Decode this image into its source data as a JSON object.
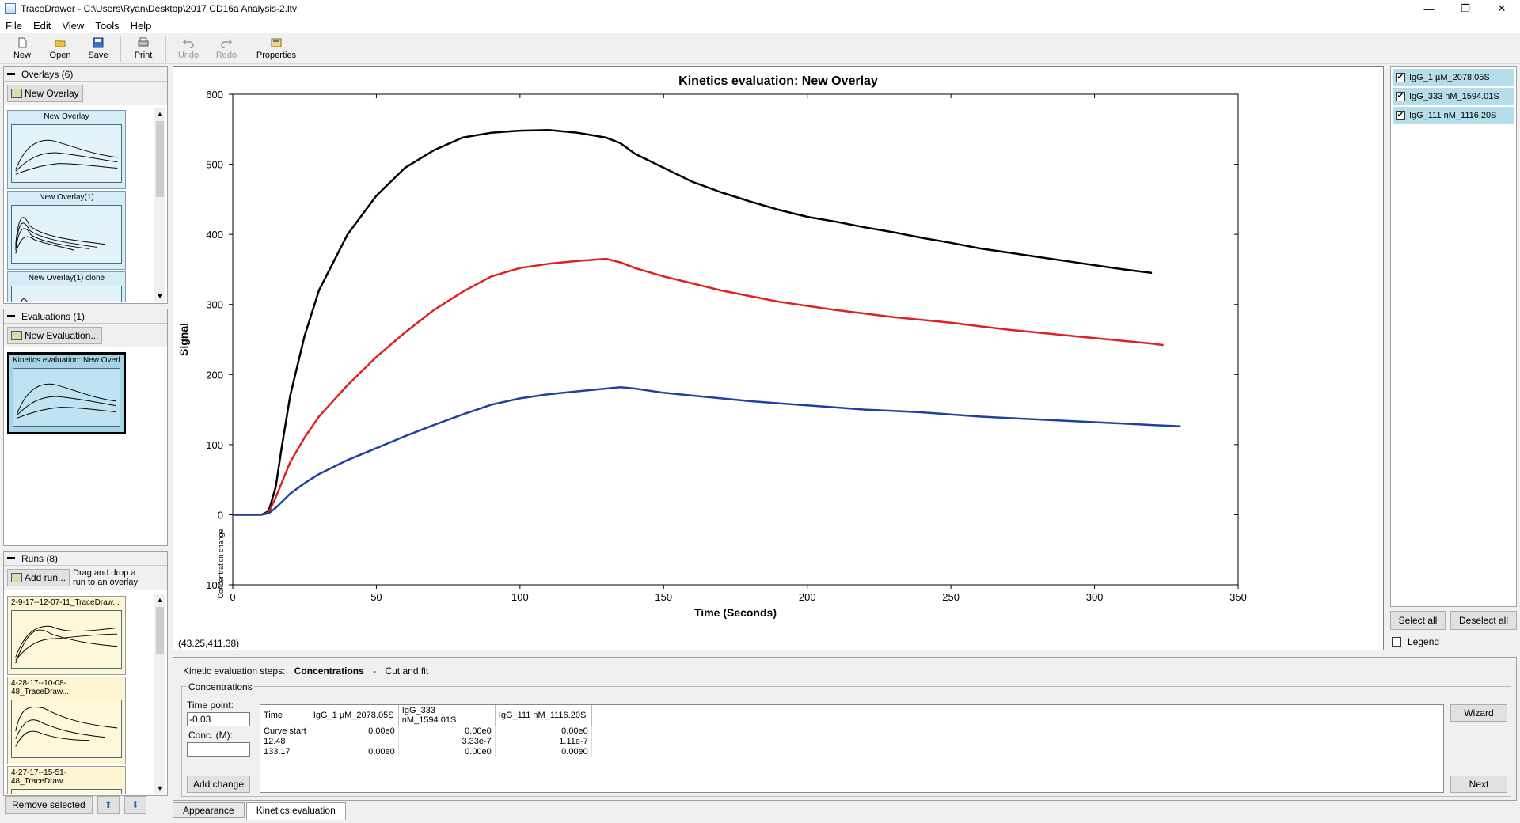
{
  "window": {
    "title": "TraceDrawer - C:\\Users\\Ryan\\Desktop\\2017 CD16a Analysis-2.ltv",
    "controls": [
      "—",
      "❐",
      "✕"
    ]
  },
  "menu": [
    "File",
    "Edit",
    "View",
    "Tools",
    "Help"
  ],
  "toolbar": {
    "new": "New",
    "open": "Open",
    "save": "Save",
    "print": "Print",
    "undo": "Undo",
    "redo": "Redo",
    "properties": "Properties"
  },
  "overlays": {
    "header": "Overlays (6)",
    "button": "New Overlay",
    "items": [
      "New Overlay",
      "New Overlay(1)",
      "New Overlay(1) clone"
    ]
  },
  "evaluations": {
    "header": "Evaluations (1)",
    "button": "New Evaluation...",
    "items": [
      "Kinetics evaluation: New Overl..."
    ]
  },
  "runs": {
    "header": "Runs (8)",
    "button": "Add run...",
    "hint": "Drag and drop a run to an overlay",
    "items": [
      "2-9-17--12-07-11_TraceDraw...",
      "4-28-17--10-08-48_TraceDraw...",
      "4-27-17--15-51-48_TraceDraw..."
    ]
  },
  "bottom_buttons": {
    "remove": "Remove selected"
  },
  "chart_data": {
    "type": "line",
    "title": "Kinetics evaluation: New Overlay",
    "xlabel": "Time (Seconds)",
    "ylabel": "Signal",
    "y2label": "Concentration change",
    "xlim": [
      0,
      350
    ],
    "ylim": [
      -100,
      600
    ],
    "xticks": [
      0,
      50,
      100,
      150,
      200,
      250,
      300,
      350
    ],
    "yticks": [
      -100,
      0,
      100,
      200,
      300,
      400,
      500,
      600
    ],
    "cursor_readout": "(43.25,411.38)",
    "series": [
      {
        "name": "IgG_1 µM_2078.05S",
        "color": "#000000",
        "x": [
          0,
          5,
          10,
          12.5,
          15,
          17,
          20,
          25,
          30,
          40,
          50,
          60,
          70,
          80,
          90,
          100,
          110,
          120,
          130,
          135,
          140,
          150,
          160,
          170,
          180,
          190,
          200,
          210,
          220,
          230,
          240,
          250,
          260,
          270,
          280,
          290,
          300,
          310,
          320
        ],
        "y": [
          0,
          0,
          0,
          5,
          40,
          95,
          170,
          255,
          320,
          400,
          455,
          495,
          520,
          538,
          545,
          548,
          549,
          545,
          538,
          530,
          515,
          495,
          475,
          460,
          447,
          435,
          425,
          418,
          410,
          403,
          395,
          388,
          380,
          374,
          368,
          362,
          356,
          350,
          345
        ]
      },
      {
        "name": "IgG_333 nM_1594.01S",
        "color": "#e02020",
        "x": [
          0,
          5,
          10,
          12.5,
          15,
          20,
          25,
          30,
          40,
          50,
          60,
          70,
          80,
          90,
          100,
          110,
          120,
          130,
          135,
          140,
          150,
          160,
          170,
          180,
          190,
          200,
          210,
          220,
          230,
          240,
          250,
          260,
          270,
          280,
          290,
          300,
          310,
          320,
          324
        ],
        "y": [
          0,
          0,
          0,
          3,
          25,
          75,
          110,
          140,
          185,
          225,
          260,
          292,
          318,
          340,
          352,
          358,
          362,
          365,
          360,
          352,
          340,
          330,
          320,
          312,
          304,
          298,
          292,
          287,
          282,
          278,
          274,
          269,
          264,
          260,
          256,
          252,
          248,
          244,
          242
        ]
      },
      {
        "name": "IgG_111 nM_1116.20S",
        "color": "#2040a0",
        "x": [
          0,
          5,
          10,
          12.5,
          15,
          20,
          25,
          30,
          40,
          50,
          60,
          70,
          80,
          90,
          100,
          110,
          120,
          130,
          135,
          140,
          150,
          160,
          170,
          180,
          190,
          200,
          210,
          220,
          230,
          240,
          250,
          260,
          270,
          280,
          290,
          300,
          310,
          320,
          330
        ],
        "y": [
          0,
          0,
          0,
          2,
          10,
          30,
          45,
          58,
          78,
          95,
          112,
          128,
          143,
          157,
          166,
          172,
          176,
          180,
          182,
          180,
          174,
          170,
          166,
          162,
          159,
          156,
          153,
          150,
          148,
          146,
          143,
          140,
          138,
          136,
          134,
          132,
          130,
          128,
          126
        ]
      }
    ]
  },
  "series_list": {
    "items": [
      "IgG_1 µM_2078.05S",
      "IgG_333 nM_1594.01S",
      "IgG_111 nM_1116.20S"
    ],
    "select_all": "Select all",
    "deselect_all": "Deselect all",
    "legend": "Legend"
  },
  "kinetic": {
    "steps_label": "Kinetic evaluation steps:",
    "step_current": "Concentrations",
    "step_sep": "-",
    "step_next": "Cut and fit",
    "group": "Concentrations",
    "time_point_label": "Time point:",
    "time_point_value": "-0.03",
    "conc_label": "Conc. (M):",
    "conc_value": "",
    "add_change": "Add change",
    "wizard": "Wizard",
    "next": "Next",
    "table": {
      "headers": [
        "Time",
        "IgG_1 µM_2078.05S",
        "IgG_333 nM_1594.01S",
        "IgG_111 nM_1116.20S"
      ],
      "rows": [
        [
          "Curve start",
          "0.00e0",
          "0.00e0",
          "0.00e0"
        ],
        [
          "12.48",
          "",
          "3.33e-7",
          "1.11e-7"
        ],
        [
          "133.17",
          "0.00e0",
          "0.00e0",
          "0.00e0"
        ]
      ]
    }
  },
  "tabs": [
    "Appearance",
    "Kinetics evaluation"
  ]
}
